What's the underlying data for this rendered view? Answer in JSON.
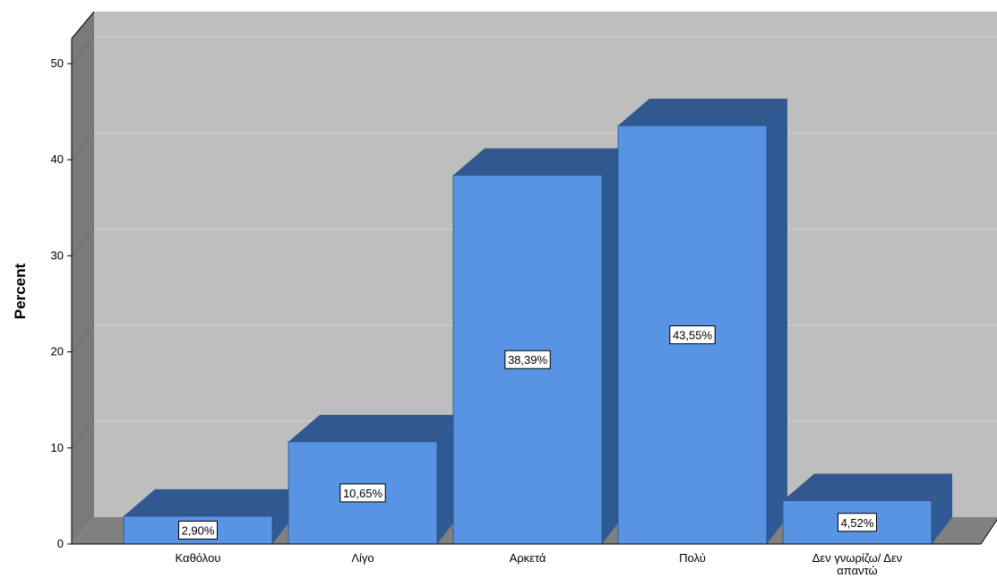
{
  "chart_data": {
    "type": "bar",
    "style": "3d",
    "categories": [
      "Καθόλου",
      "Λίγο",
      "Αρκετά",
      "Πολύ",
      "Δεν γνωρίζω/ Δεν απαντώ"
    ],
    "values": [
      2.9,
      10.65,
      38.39,
      43.55,
      4.52
    ],
    "data_labels": [
      "2,90%",
      "10,65%",
      "38,39%",
      "43,55%",
      "4,52%"
    ],
    "title": "",
    "xlabel": "",
    "ylabel": "Percent",
    "ylim": [
      0,
      53
    ],
    "yticks": [
      0,
      10,
      20,
      30,
      40,
      50
    ],
    "ytick_labels": [
      "0",
      "10",
      "20",
      "30",
      "40",
      "50"
    ],
    "grid": true,
    "colors": {
      "bar_front": "#5894E3",
      "bar_top": "#31588F",
      "bar_side": "#2F5A93",
      "plot_back": "#BEBEBE",
      "floor": "#808080",
      "left_wall": "#7A7A7A",
      "gridline": "#D4D4D4"
    }
  }
}
